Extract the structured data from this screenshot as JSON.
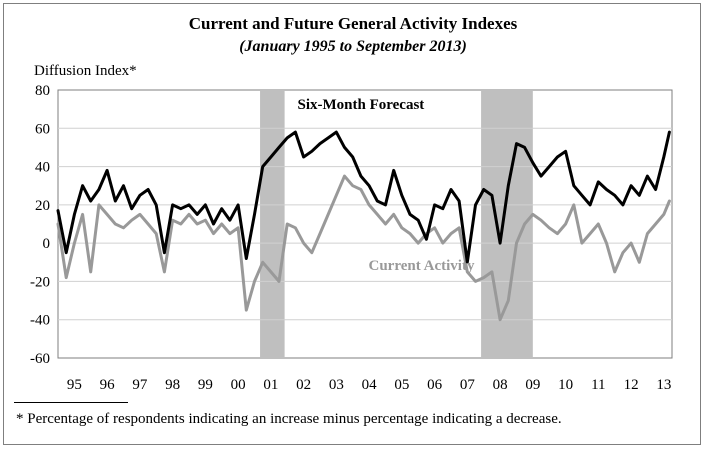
{
  "chart_data": {
    "type": "line",
    "title": "Current and Future General Activity Indexes",
    "subtitle": "(January 1995 to September 2013)",
    "ylabel": "Diffusion Index*",
    "xlabel": "",
    "ylim": [
      -60,
      80
    ],
    "yticks": [
      80,
      60,
      40,
      20,
      0,
      -20,
      -40,
      -60
    ],
    "xlim": [
      1995.0,
      2013.75
    ],
    "grid": "horizontal",
    "categories": [
      "95",
      "96",
      "97",
      "98",
      "99",
      "00",
      "01",
      "02",
      "03",
      "04",
      "05",
      "06",
      "07",
      "08",
      "09",
      "10",
      "11",
      "12",
      "13"
    ],
    "recessions": [
      {
        "start": 2001.17,
        "end": 2001.92
      },
      {
        "start": 2007.92,
        "end": 2009.5
      }
    ],
    "series": [
      {
        "name": "Six-Month Forecast",
        "color": "#000000",
        "x": [
          1995.0,
          1995.25,
          1995.5,
          1995.75,
          1996.0,
          1996.25,
          1996.5,
          1996.75,
          1997.0,
          1997.25,
          1997.5,
          1997.75,
          1998.0,
          1998.25,
          1998.5,
          1998.75,
          1999.0,
          1999.25,
          1999.5,
          1999.75,
          2000.0,
          2000.25,
          2000.5,
          2000.75,
          2001.0,
          2001.25,
          2001.5,
          2001.75,
          2002.0,
          2002.25,
          2002.5,
          2002.75,
          2003.0,
          2003.25,
          2003.5,
          2003.75,
          2004.0,
          2004.25,
          2004.5,
          2004.75,
          2005.0,
          2005.25,
          2005.5,
          2005.75,
          2006.0,
          2006.25,
          2006.5,
          2006.75,
          2007.0,
          2007.25,
          2007.5,
          2007.75,
          2008.0,
          2008.25,
          2008.5,
          2008.75,
          2009.0,
          2009.25,
          2009.5,
          2009.75,
          2010.0,
          2010.25,
          2010.5,
          2010.75,
          2011.0,
          2011.25,
          2011.5,
          2011.75,
          2012.0,
          2012.25,
          2012.5,
          2012.75,
          2013.0,
          2013.25,
          2013.5,
          2013.67
        ],
        "values": [
          17,
          -5,
          15,
          30,
          22,
          28,
          38,
          22,
          30,
          18,
          25,
          28,
          20,
          -5,
          20,
          18,
          20,
          15,
          20,
          10,
          18,
          12,
          20,
          -8,
          15,
          40,
          45,
          50,
          55,
          58,
          45,
          48,
          52,
          55,
          58,
          50,
          45,
          35,
          30,
          22,
          20,
          38,
          25,
          15,
          12,
          2,
          20,
          18,
          28,
          22,
          -10,
          20,
          28,
          25,
          0,
          30,
          52,
          50,
          42,
          35,
          40,
          45,
          48,
          30,
          25,
          20,
          32,
          28,
          25,
          20,
          30,
          25,
          35,
          28,
          45,
          58
        ]
      },
      {
        "name": "Current Activity",
        "color": "#999999",
        "x": [
          1995.0,
          1995.25,
          1995.5,
          1995.75,
          1996.0,
          1996.25,
          1996.5,
          1996.75,
          1997.0,
          1997.25,
          1997.5,
          1997.75,
          1998.0,
          1998.25,
          1998.5,
          1998.75,
          1999.0,
          1999.25,
          1999.5,
          1999.75,
          2000.0,
          2000.25,
          2000.5,
          2000.75,
          2001.0,
          2001.25,
          2001.5,
          2001.75,
          2002.0,
          2002.25,
          2002.5,
          2002.75,
          2003.0,
          2003.25,
          2003.5,
          2003.75,
          2004.0,
          2004.25,
          2004.5,
          2004.75,
          2005.0,
          2005.25,
          2005.5,
          2005.75,
          2006.0,
          2006.25,
          2006.5,
          2006.75,
          2007.0,
          2007.25,
          2007.5,
          2007.75,
          2008.0,
          2008.25,
          2008.5,
          2008.75,
          2009.0,
          2009.25,
          2009.5,
          2009.75,
          2010.0,
          2010.25,
          2010.5,
          2010.75,
          2011.0,
          2011.25,
          2011.5,
          2011.75,
          2012.0,
          2012.25,
          2012.5,
          2012.75,
          2013.0,
          2013.25,
          2013.5,
          2013.67
        ],
        "values": [
          10,
          -18,
          0,
          15,
          -15,
          20,
          15,
          10,
          8,
          12,
          15,
          10,
          5,
          -15,
          12,
          10,
          15,
          10,
          12,
          5,
          10,
          5,
          8,
          -35,
          -20,
          -10,
          -15,
          -20,
          10,
          8,
          0,
          -5,
          5,
          15,
          25,
          35,
          30,
          28,
          20,
          15,
          10,
          15,
          8,
          5,
          0,
          5,
          8,
          0,
          5,
          8,
          -15,
          -20,
          -18,
          -15,
          -40,
          -30,
          0,
          10,
          15,
          12,
          8,
          5,
          10,
          20,
          0,
          5,
          10,
          0,
          -15,
          -5,
          0,
          -10,
          5,
          10,
          15,
          22
        ]
      }
    ],
    "annotations": [
      {
        "text": "Six-Month Forecast",
        "x": 2004.25,
        "y": 70
      },
      {
        "text": "Current Activity",
        "x": 2006.1,
        "y": -14
      }
    ],
    "footnote": "* Percentage of respondents indicating an increase minus percentage indicating a decrease."
  }
}
